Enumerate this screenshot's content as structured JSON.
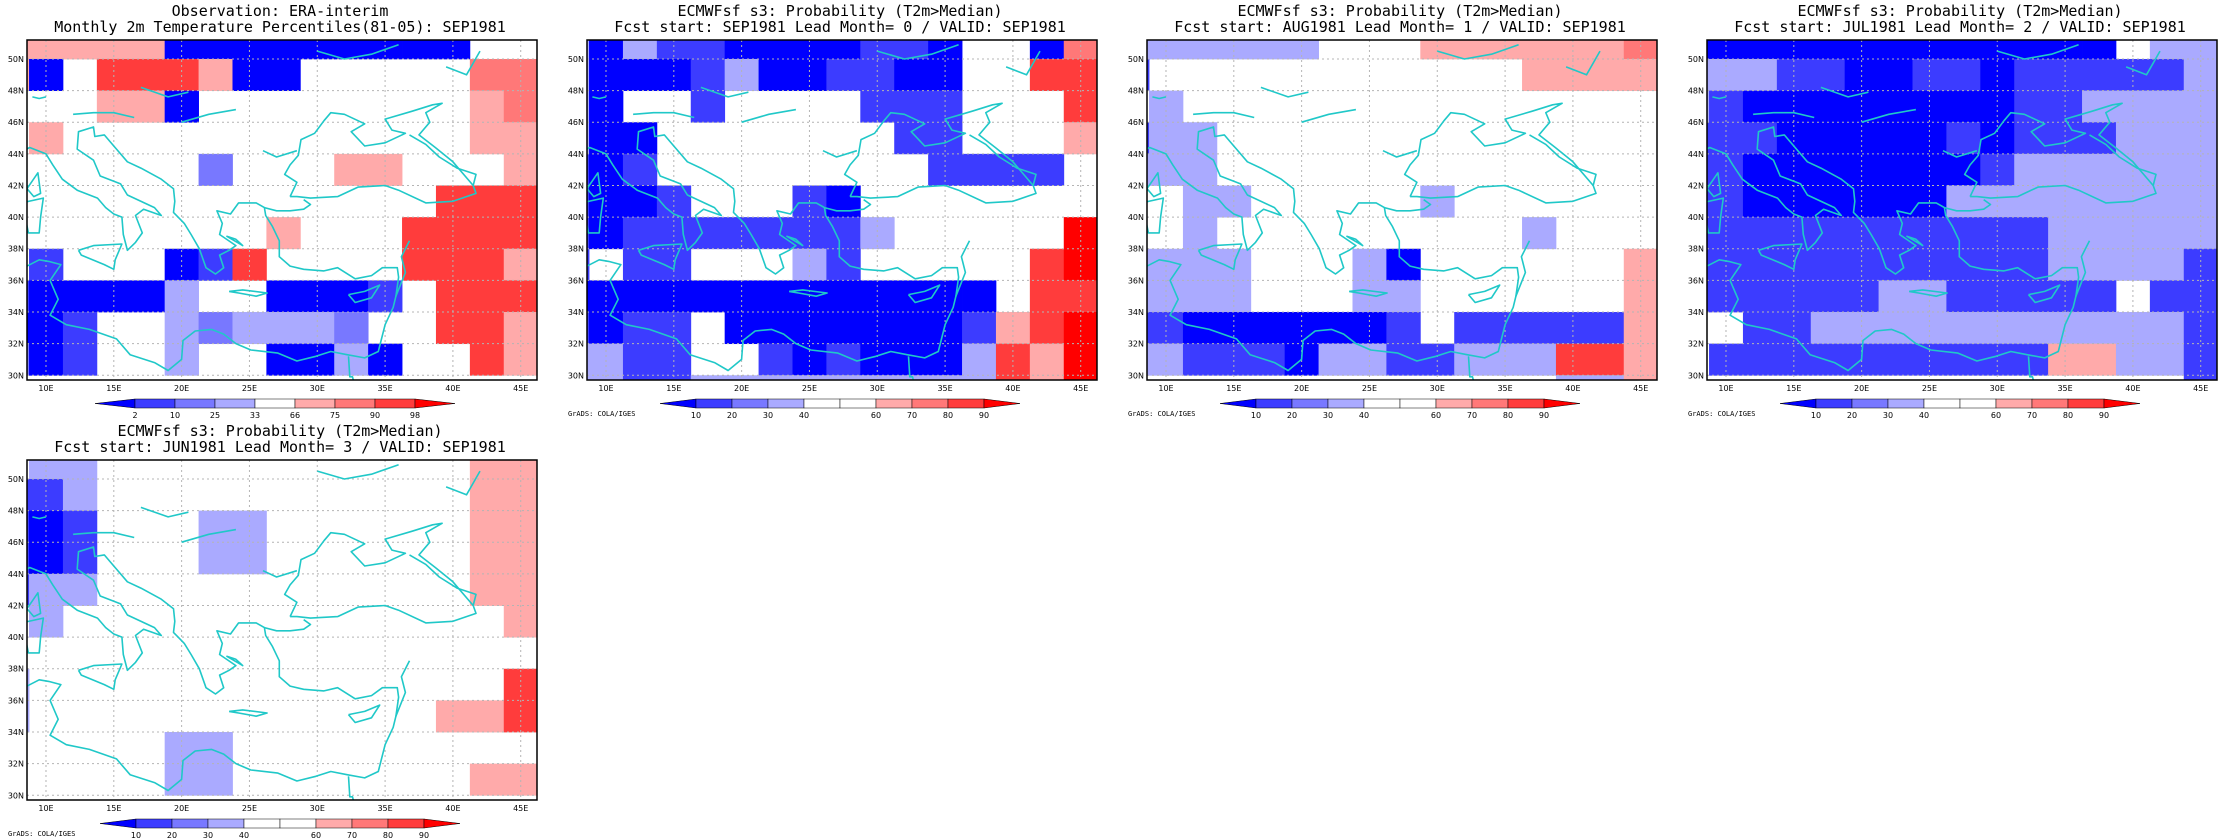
{
  "colors": {
    "coast": "#20c8c8",
    "frame": "#000000",
    "grid": "#b4b4b4",
    "obs_scale": [
      "#0000ff",
      "#3c3cff",
      "#7878ff",
      "#aaaaff",
      "#ffffff",
      "#ffaaaa",
      "#ff7878",
      "#ff3c3c",
      "#ff0000"
    ],
    "prob_scale": [
      "#0000ff",
      "#3c3cff",
      "#7878ff",
      "#aaaaff",
      "#ffffff",
      "#ffffff",
      "#ffaaaa",
      "#ff7878",
      "#ff3c3c",
      "#ff0000"
    ]
  },
  "axes": {
    "lon_labels": [
      "10E",
      "15E",
      "20E",
      "25E",
      "30E",
      "35E",
      "40E",
      "45E"
    ],
    "lat_labels": [
      "50N",
      "48N",
      "46N",
      "44N",
      "42N",
      "40N",
      "38N",
      "36N",
      "34N",
      "32N",
      "30N"
    ]
  },
  "credit": "GrADS: COLA/IGES",
  "obs_ticks": [
    "2",
    "10",
    "25",
    "33",
    "66",
    "75",
    "90",
    "98"
  ],
  "prob_ticks": [
    "10",
    "20",
    "30",
    "40",
    "60",
    "70",
    "80",
    "90"
  ],
  "panels": [
    {
      "id": "obs",
      "title1": "Observation: ERA-interim",
      "title2": "Monthly 2m Temperature Percentiles(81-05): SEP1981",
      "scale": "obs",
      "show_credit": false
    },
    {
      "id": "lead0",
      "title1": "ECMWFsf s3: Probability (T2m>Median)",
      "title2": "Fcst start: SEP1981   Lead Month= 0 / VALID: SEP1981",
      "scale": "prob",
      "show_credit": true
    },
    {
      "id": "lead1",
      "title1": "ECMWFsf s3: Probability (T2m>Median)",
      "title2": "Fcst start: AUG1981   Lead Month= 1 / VALID: SEP1981",
      "scale": "prob",
      "show_credit": true
    },
    {
      "id": "lead2",
      "title1": "ECMWFsf s3: Probability (T2m>Median)",
      "title2": "Fcst start: JUL1981   Lead Month= 2 / VALID: SEP1981",
      "scale": "prob",
      "show_credit": true
    },
    {
      "id": "lead3",
      "title1": "ECMWFsf s3: Probability (T2m>Median)",
      "title2": "Fcst start: JUN1981   Lead Month= 3 / VALID: SEP1981",
      "scale": "prob",
      "show_credit": true
    }
  ],
  "grids": {
    "obs": [
      "666661111111110000",
      "610777611000005555",
      "000661000000006555",
      "060000000000006677",
      "000000400066000677",
      "000000000000077777",
      "000000006000777777",
      "020001270000777666",
      "211113001112077777",
      "112003433340077666",
      "412003001131007677",
      "000000000000000000"
    ],
    "lead0": [
      "313221111221001558",
      "311123112211007788",
      "310020000222000778",
      "311000000022000678",
      "212000000002222078",
      "211200021000000078",
      "212222222300000888",
      "202200032000007888",
      "111111111111107788",
      "212201111111267888",
      "332200212111376888",
      "332233333333376888"
    ],
    "lead1": [
      "333333000666666575",
      "200000000000666665",
      "030000000000000066",
      "233000000000000006",
      "333000000000000000",
      "003300000300000000",
      "003000000000300000",
      "333300031000000666",
      "333300033000000666",
      "221111112022222666",
      "332221332233377666",
      "000000000000033666"
    ],
    "lead2": [
      "111111111111103333",
      "333221122122222333",
      "321111111122333330",
      "222111112122233332",
      "221111111233333332",
      "221111113333333332",
      "222222222223333321",
      "222222222223333222",
      "222222332222202222",
      "002233333333333221",
      "022222222226633222",
      "000000000000000222"
    ],
    "lead3": [
      "033000000000006666",
      "223000000000006666",
      "212000330000006666",
      "212000330000006666",
      "233000000000006666",
      "030000000000000666",
      "000000000000000077",
      "300000000000000777",
      "300000000000066777",
      "000003300000000000",
      "000003300000006600",
      "000000000000000000"
    ]
  }
}
